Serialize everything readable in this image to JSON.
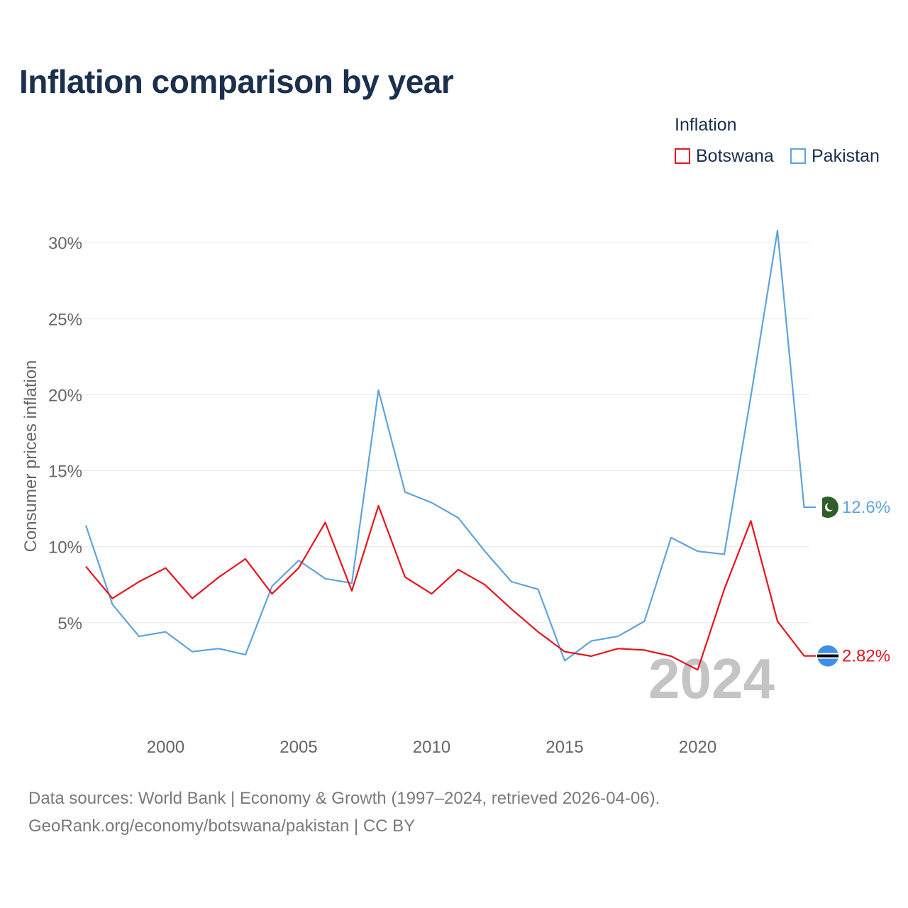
{
  "title": "Inflation comparison by year",
  "legend": {
    "title": "Inflation",
    "items": [
      {
        "label": "Botswana",
        "color": "#e8141c"
      },
      {
        "label": "Pakistan",
        "color": "#5ea3de"
      }
    ]
  },
  "source": {
    "line1": "Data sources: World Bank | Economy & Growth (1997–2024, retrieved 2026-04-06).",
    "line2": "GeoRank.org/economy/botswana/pakistan | CC BY"
  },
  "chart_data": {
    "type": "line",
    "ylabel": "Consumer prices inflation",
    "xlabel": "",
    "xlim": [
      1997,
      2024.2
    ],
    "ylim": [
      0.7,
      31.5
    ],
    "x_ticks": [
      2000,
      2005,
      2010,
      2015,
      2020
    ],
    "y_ticks": [
      5,
      10,
      15,
      20,
      25,
      30
    ],
    "y_tick_labels": [
      "5%",
      "10%",
      "15%",
      "20%",
      "25%",
      "30%"
    ],
    "grid": true,
    "year_watermark": "2024",
    "x": [
      1997,
      1998,
      1999,
      2000,
      2001,
      2002,
      2003,
      2004,
      2005,
      2006,
      2007,
      2008,
      2009,
      2010,
      2011,
      2012,
      2013,
      2014,
      2015,
      2016,
      2017,
      2018,
      2019,
      2020,
      2021,
      2022,
      2023,
      2024
    ],
    "series": [
      {
        "name": "Pakistan",
        "color": "#5ea3de",
        "end_label": "12.6%",
        "flag": "pakistan-flag",
        "values": [
          11.4,
          6.2,
          4.1,
          4.4,
          3.1,
          3.3,
          2.9,
          7.4,
          9.1,
          7.9,
          7.6,
          20.3,
          13.6,
          12.9,
          11.9,
          9.7,
          7.7,
          7.2,
          2.5,
          3.8,
          4.1,
          5.1,
          10.6,
          9.7,
          9.5,
          19.9,
          30.8,
          12.6
        ]
      },
      {
        "name": "Botswana",
        "color": "#e8141c",
        "end_label": "2.82%",
        "flag": "botswana-flag",
        "values": [
          8.7,
          6.6,
          7.7,
          8.6,
          6.6,
          8.0,
          9.2,
          6.9,
          8.6,
          11.6,
          7.1,
          12.7,
          8.0,
          6.9,
          8.5,
          7.5,
          5.9,
          4.4,
          3.1,
          2.8,
          3.3,
          3.2,
          2.8,
          1.9,
          7.2,
          11.7,
          5.1,
          2.82
        ]
      }
    ]
  }
}
